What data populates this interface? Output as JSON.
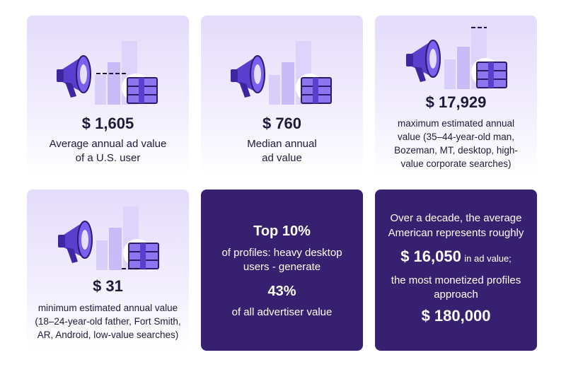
{
  "cards": [
    {
      "value": "$ 1,605",
      "description": [
        "Average annual ad value",
        "of a U.S. user"
      ]
    },
    {
      "value": "$ 760",
      "description": [
        "Median annual",
        "ad value"
      ]
    },
    {
      "value": "$ 17,929",
      "description": [
        "maximum estimated annual",
        "value (35–44-year-old man,",
        "Bozeman, MT, desktop, high-",
        "value corporate searches)"
      ]
    },
    {
      "value": "$ 31",
      "description": [
        "minimum estimated annual value",
        "(18–24-year-old father, Fort Smith,",
        "AR, Android, low-value searches)"
      ]
    },
    {
      "headline": "Top 10%",
      "text": [
        "of profiles: heavy desktop",
        "users - generate"
      ],
      "share": "43%",
      "tail": "of all advertiser value"
    },
    {
      "intro": [
        "Over a decade, the average",
        "American represents roughly"
      ],
      "value": "$ 16,050",
      "value_suffix": "in ad value;",
      "outro": [
        "the most monetized profiles",
        "approach"
      ],
      "max_value": "$ 180,000"
    }
  ]
}
